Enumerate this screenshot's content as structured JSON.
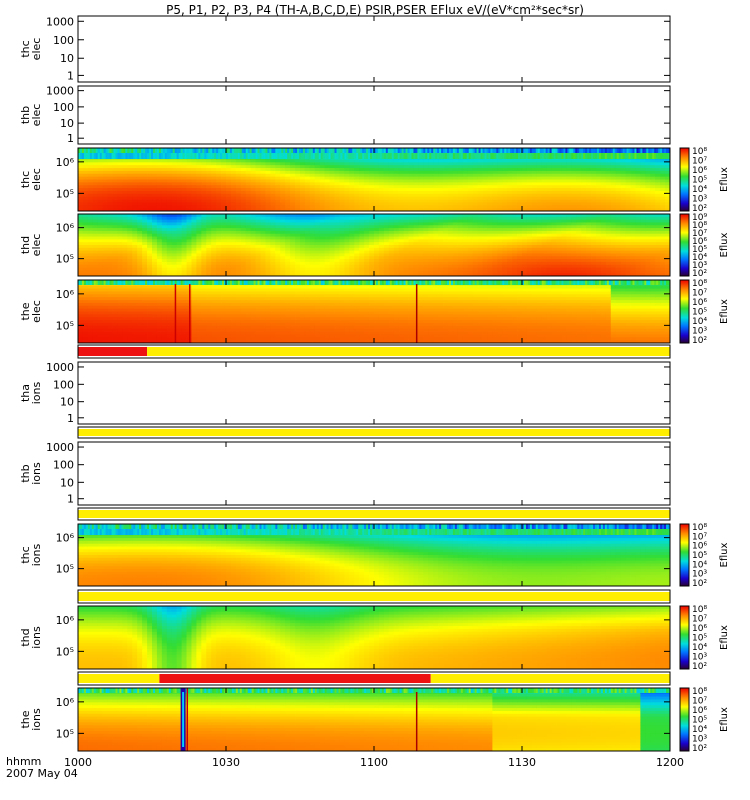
{
  "chart_data": {
    "type": "heatmap",
    "title": "P5, P1, P2, P3, P4 (TH-A,B,C,D,E) PSIR,PSER EFlux eV/(eV*cm²*sec*sr)",
    "date_label": "2007 May 04",
    "time_label": "hhmm",
    "x_ticks": [
      "1000",
      "1030",
      "1100",
      "1130",
      "1200"
    ],
    "x_range_minutes": [
      0,
      120
    ],
    "colorbar_label": "Eflux",
    "panels": [
      {
        "kind": "spec",
        "probe": "thc",
        "species": "elec",
        "label": [
          "thc",
          "elec"
        ],
        "has_data": false,
        "yticks": [
          "1000",
          "100",
          "10",
          "1"
        ]
      },
      {
        "kind": "spec",
        "probe": "thb",
        "species": "elec",
        "label": [
          "thb",
          "elec"
        ],
        "has_data": false,
        "yticks": [
          "1000",
          "100",
          "10",
          "1"
        ]
      },
      {
        "kind": "spec",
        "probe": "thc",
        "species": "elec",
        "label": [
          "thc",
          "elec"
        ],
        "has_data": true,
        "yticks": [
          "10⁶",
          "10⁵"
        ],
        "cbar_ticks": [
          "10⁸",
          "10⁷",
          "10⁶",
          "10⁵",
          "10⁴",
          "10³",
          "10²"
        ],
        "pattern": "c_elec"
      },
      {
        "kind": "spec",
        "probe": "thd",
        "species": "elec",
        "label": [
          "thd",
          "elec"
        ],
        "has_data": true,
        "yticks": [
          "10⁶",
          "10⁵"
        ],
        "cbar_ticks": [
          "10⁹",
          "10⁸",
          "10⁷",
          "10⁶",
          "10⁵",
          "10⁴",
          "10³",
          "10²"
        ],
        "pattern": "d_elec"
      },
      {
        "kind": "spec",
        "probe": "the",
        "species": "elec",
        "label": [
          "the",
          "elec"
        ],
        "has_data": true,
        "yticks": [
          "10⁶",
          "10⁵"
        ],
        "cbar_ticks": [
          "10⁸",
          "10⁷",
          "10⁶",
          "10⁵",
          "10⁴",
          "10³",
          "10²"
        ],
        "pattern": "e_elec"
      },
      {
        "kind": "bar",
        "segments": [
          {
            "from": 0,
            "to": 14,
            "color": "#ee1111"
          },
          {
            "from": 14,
            "to": 120,
            "color": "#ffee00"
          }
        ]
      },
      {
        "kind": "spec",
        "probe": "tha",
        "species": "ions",
        "label": [
          "tha",
          "ions"
        ],
        "has_data": false,
        "yticks": [
          "1000",
          "100",
          "10",
          "1"
        ]
      },
      {
        "kind": "bar",
        "segments": [
          {
            "from": 0,
            "to": 120,
            "color": "#ffee00"
          }
        ]
      },
      {
        "kind": "spec",
        "probe": "thb",
        "species": "ions",
        "label": [
          "thb",
          "ions"
        ],
        "has_data": false,
        "yticks": [
          "1000",
          "100",
          "10",
          "1"
        ]
      },
      {
        "kind": "bar",
        "segments": [
          {
            "from": 0,
            "to": 120,
            "color": "#ffee00"
          }
        ]
      },
      {
        "kind": "spec",
        "probe": "thc",
        "species": "ions",
        "label": [
          "thc",
          "ions"
        ],
        "has_data": true,
        "yticks": [
          "10⁶",
          "10⁵"
        ],
        "cbar_ticks": [
          "10⁸",
          "10⁷",
          "10⁶",
          "10⁵",
          "10⁴",
          "10³",
          "10²"
        ],
        "pattern": "c_ions"
      },
      {
        "kind": "bar",
        "segments": [
          {
            "from": 0,
            "to": 120,
            "color": "#ffee00"
          }
        ]
      },
      {
        "kind": "spec",
        "probe": "thd",
        "species": "ions",
        "label": [
          "thd",
          "ions"
        ],
        "has_data": true,
        "yticks": [
          "10⁶",
          "10⁵"
        ],
        "cbar_ticks": [
          "10⁸",
          "10⁷",
          "10⁶",
          "10⁵",
          "10⁴",
          "10³",
          "10²"
        ],
        "pattern": "d_ions"
      },
      {
        "kind": "bar",
        "segments": [
          {
            "from": 0,
            "to": 16.5,
            "color": "#ffee00"
          },
          {
            "from": 16.5,
            "to": 71.5,
            "color": "#ee1111"
          },
          {
            "from": 71.5,
            "to": 120,
            "color": "#ffee00"
          }
        ]
      },
      {
        "kind": "spec",
        "probe": "the",
        "species": "ions",
        "label": [
          "the",
          "ions"
        ],
        "has_data": true,
        "yticks": [
          "10⁶",
          "10⁵"
        ],
        "cbar_ticks": [
          "10⁸",
          "10⁷",
          "10⁶",
          "10⁵",
          "10⁴",
          "10³",
          "10²"
        ],
        "pattern": "e_ions"
      }
    ]
  }
}
